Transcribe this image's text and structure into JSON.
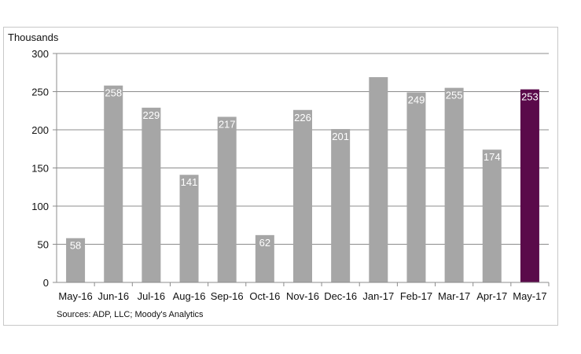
{
  "chart_data": {
    "type": "bar",
    "ylabel": "Thousands",
    "categories": [
      "May-16",
      "Jun-16",
      "Jul-16",
      "Aug-16",
      "Sep-16",
      "Oct-16",
      "Nov-16",
      "Dec-16",
      "Jan-17",
      "Feb-17",
      "Mar-17",
      "Apr-17",
      "May-17"
    ],
    "values": [
      58,
      258,
      229,
      141,
      217,
      62,
      226,
      201,
      269,
      249,
      255,
      174,
      253
    ],
    "data_labels": [
      "58",
      "258",
      "229",
      "141",
      "217",
      "62",
      "226",
      "201",
      "",
      "249",
      "255",
      "174",
      "253"
    ],
    "ylim": [
      0,
      300
    ],
    "yticks": [
      0,
      50,
      100,
      150,
      200,
      250,
      300
    ],
    "grid": true,
    "legend": "none",
    "bar_color": "#a6a6a6",
    "highlight_color": "#5a0a4a",
    "highlight_index": 12
  },
  "source_note": "Sources: ADP, LLC; Moody's Analytics"
}
